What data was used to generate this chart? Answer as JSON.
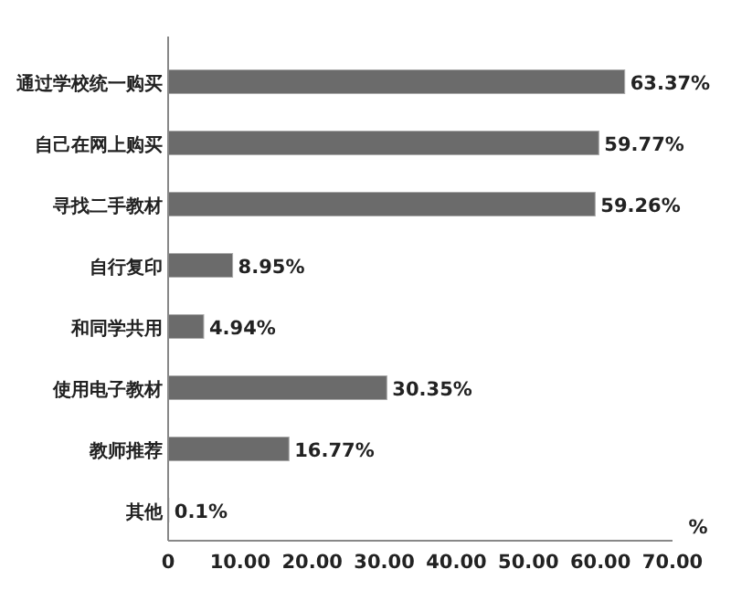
{
  "chart_data": {
    "type": "bar",
    "orientation": "horizontal",
    "xlabel": "%",
    "categories": [
      "通过学校统一购买",
      "自己在网上购买",
      "寻找二手教材",
      "自行复印",
      "和同学共用",
      "使用电子教材",
      "教师推荐",
      "其他"
    ],
    "values": [
      63.37,
      59.77,
      59.26,
      8.95,
      4.94,
      30.35,
      16.77,
      0.1
    ],
    "value_labels": [
      "63.37%",
      "59.77%",
      "59.26%",
      "8.95%",
      "4.94%",
      "30.35%",
      "16.77%",
      "0.1%"
    ],
    "color": "#6b6b6b",
    "xlim": [
      0,
      70
    ],
    "xticks": [
      0,
      {
        "value": 10,
        "label": "10.00"
      },
      {
        "value": 20,
        "label": "20.00"
      },
      {
        "value": 30,
        "label": "30.00"
      },
      {
        "value": 40,
        "label": "40.00"
      },
      {
        "value": 50,
        "label": "50.00"
      },
      {
        "value": 60,
        "label": "60.00"
      },
      {
        "value": 70,
        "label": "70.00"
      }
    ]
  }
}
